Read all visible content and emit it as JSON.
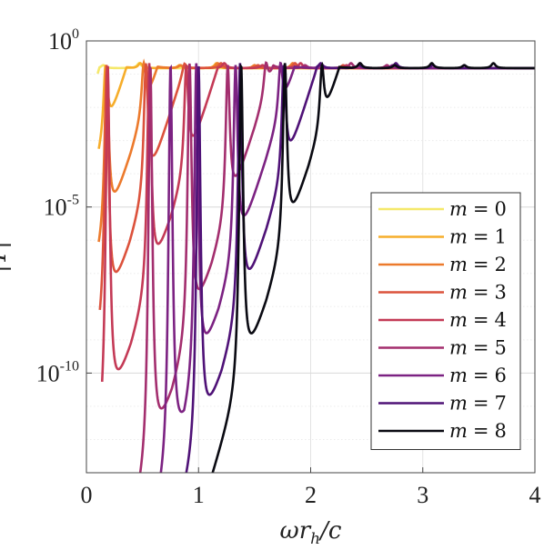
{
  "chart_data": {
    "type": "line",
    "title": "",
    "xlabel": "ωr_h/c",
    "xlabel_main": "ωr",
    "xlabel_sub": "h",
    "xlabel_tail": "/c",
    "ylabel": "|T|",
    "ylabel_visible": "|T|",
    "yscale": "log",
    "xlim": [
      0,
      4
    ],
    "ylim_log10": [
      -13,
      0
    ],
    "x_ticks": [
      "0",
      "1",
      "2",
      "3",
      "4"
    ],
    "y_ticks": [
      {
        "base": "10",
        "exp": "0",
        "log10": 0
      },
      {
        "base": "10",
        "exp": "-5",
        "log10": -5
      },
      {
        "base": "10",
        "exp": "-10",
        "log10": -10
      }
    ],
    "grid": true,
    "legend_position": "lower-right",
    "series": [
      {
        "name": "m = 0",
        "var": "m",
        "rel": "=",
        "num": "0",
        "color": "#f5e86a",
        "x_start": 0.1,
        "base_log10": -1.0,
        "peaks": [
          0.15,
          0.47
        ]
      },
      {
        "name": "m = 1",
        "var": "m",
        "rel": "=",
        "num": "1",
        "color": "#f6ad2a",
        "x_start": 0.11,
        "base_log10": -3.5,
        "peaks": [
          0.17,
          0.48,
          0.83,
          1.16
        ]
      },
      {
        "name": "m = 2",
        "var": "m",
        "rel": "=",
        "num": "2",
        "color": "#ec7a2c",
        "x_start": 0.11,
        "base_log10": -6.5,
        "peaks": [
          0.18,
          0.51,
          0.84,
          1.17,
          1.5,
          1.84
        ]
      },
      {
        "name": "m = 3",
        "var": "m",
        "rel": "=",
        "num": "3",
        "color": "#dc523c",
        "x_start": 0.12,
        "base_log10": -9.0,
        "peaks": [
          0.18,
          0.53,
          0.87,
          1.2,
          1.53,
          1.86,
          2.29
        ]
      },
      {
        "name": "m = 4",
        "var": "m",
        "rel": "=",
        "num": "4",
        "color": "#c43a56",
        "x_start": 0.14,
        "base_log10": -12.0,
        "peaks": [
          0.19,
          0.56,
          0.89,
          1.23,
          1.57,
          1.91,
          2.32
        ]
      },
      {
        "name": "m = 5",
        "var": "m",
        "rel": "=",
        "num": "5",
        "color": "#a32e6e",
        "x_start": 0.45,
        "base_log10": -14.0,
        "peaks": [
          0.57,
          0.92,
          1.26,
          1.6,
          1.95,
          2.36,
          2.68
        ]
      },
      {
        "name": "m = 6",
        "var": "m",
        "rel": "=",
        "num": "6",
        "color": "#7c2282",
        "x_start": 0.64,
        "base_log10": -14.0,
        "peaks": [
          0.75,
          0.98,
          1.33,
          1.73,
          2.09,
          2.44,
          2.73
        ]
      },
      {
        "name": "m = 7",
        "var": "m",
        "rel": "=",
        "num": "7",
        "color": "#4f1277",
        "x_start": 0.84,
        "base_log10": -14.0,
        "peaks": [
          1.0,
          1.37,
          1.76,
          2.09,
          2.43,
          2.76,
          3.09
        ]
      },
      {
        "name": "m = 8",
        "var": "m",
        "rel": "=",
        "num": "8",
        "color": "#0a0a12",
        "x_start": 1.04,
        "base_log10": -14.0,
        "peaks": [
          1.38,
          1.77,
          2.1,
          2.44,
          2.75,
          3.08,
          3.37,
          3.63
        ]
      }
    ]
  }
}
